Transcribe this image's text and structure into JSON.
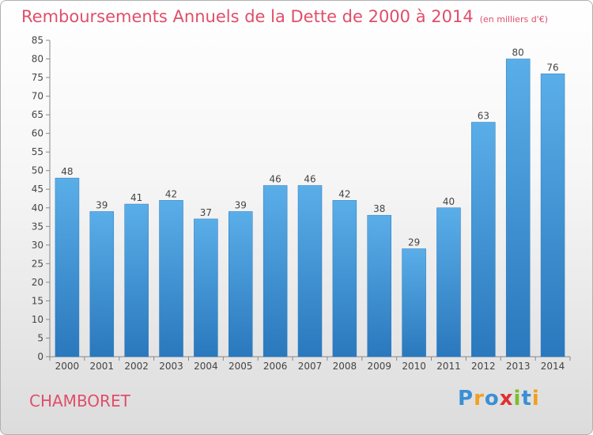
{
  "title": "Remboursements Annuels de la Dette de 2000 à 2014",
  "unit": "(en milliers d'€)",
  "commune": "CHAMBORET",
  "logo": {
    "letters": [
      "P",
      "r",
      "o",
      "x",
      "i",
      "t",
      "i"
    ],
    "colors": [
      "#3a8fd6",
      "#f0a020",
      "#3a8fd6",
      "#e03030",
      "#7bbf2a",
      "#3a8fd6",
      "#f0a020"
    ]
  },
  "chart_data": {
    "type": "bar",
    "categories": [
      "2000",
      "2001",
      "2002",
      "2003",
      "2004",
      "2005",
      "2006",
      "2007",
      "2008",
      "2009",
      "2010",
      "2011",
      "2012",
      "2013",
      "2014"
    ],
    "values": [
      48,
      39,
      41,
      42,
      37,
      39,
      46,
      46,
      42,
      38,
      29,
      40,
      63,
      80,
      76
    ],
    "ylim": [
      0,
      85
    ],
    "yticks": [
      0,
      5,
      10,
      15,
      20,
      25,
      30,
      35,
      40,
      45,
      50,
      55,
      60,
      65,
      70,
      75,
      80,
      85
    ],
    "grid": false,
    "bar_color": "#3d97dc"
  }
}
